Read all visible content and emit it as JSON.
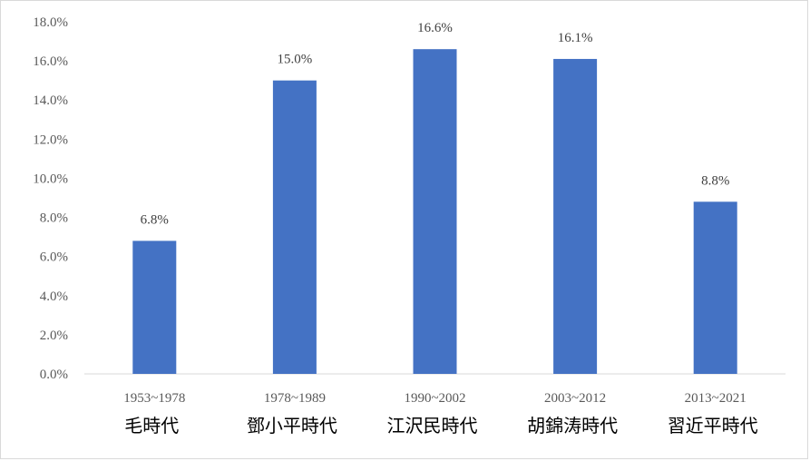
{
  "chart_data": {
    "type": "bar",
    "categories": [
      {
        "years": "1953~1978",
        "name": "毛時代"
      },
      {
        "years": "1978~1989",
        "name": "鄧小平時代"
      },
      {
        "years": "1990~2002",
        "name": "江沢民時代"
      },
      {
        "years": "2003~2012",
        "name": "胡錦涛時代"
      },
      {
        "years": "2013~2021",
        "name": "習近平時代"
      }
    ],
    "values": [
      6.8,
      15.0,
      16.6,
      16.1,
      8.8
    ],
    "value_labels": [
      "6.8%",
      "15.0%",
      "16.6%",
      "16.1%",
      "8.8%"
    ],
    "y_ticks": [
      "0.0%",
      "2.0%",
      "4.0%",
      "6.0%",
      "8.0%",
      "10.0%",
      "12.0%",
      "14.0%",
      "16.0%",
      "18.0%"
    ],
    "ylim": [
      0,
      18
    ],
    "grid": false,
    "bar_color": "#4472c4",
    "axis_color": "#d9d9d9"
  }
}
